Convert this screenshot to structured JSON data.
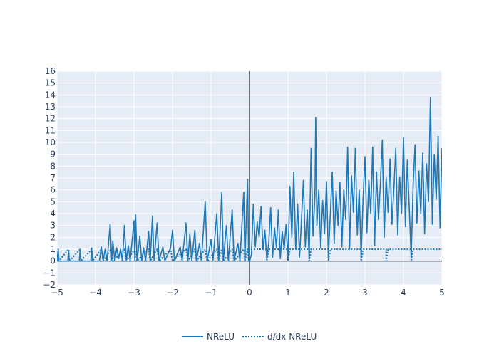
{
  "chart_data": {
    "type": "line",
    "title": "",
    "xlabel": "",
    "ylabel": "",
    "xlim": [
      -5,
      5
    ],
    "ylim": [
      -2,
      16
    ],
    "x_ticks": [
      -5,
      -4,
      -3,
      -2,
      -1,
      0,
      1,
      2,
      3,
      4,
      5
    ],
    "x_tick_labels": [
      "−5",
      "−4",
      "−3",
      "−2",
      "−1",
      "0",
      "1",
      "2",
      "3",
      "4",
      "5"
    ],
    "y_ticks": [
      -2,
      -1,
      0,
      1,
      2,
      3,
      4,
      5,
      6,
      7,
      8,
      9,
      10,
      11,
      12,
      13,
      14,
      15,
      16
    ],
    "y_tick_labels": [
      "−2",
      "−1",
      "0",
      "1",
      "2",
      "3",
      "4",
      "5",
      "6",
      "7",
      "8",
      "9",
      "10",
      "11",
      "12",
      "13",
      "14",
      "15",
      "16"
    ],
    "grid": true,
    "legend_position": "bottom-center",
    "colors": {
      "series": "#1f77b4",
      "plot_bg": "#e5ecf6",
      "grid": "#ffffff",
      "zero_line": "#000000",
      "x_zero_line": "#444444"
    },
    "series": [
      {
        "name": "NReLU",
        "style": "solid",
        "note": "noisy ReLU: mostly 0 for x<0 with sparse spikes; noisy values growing with x for x>0",
        "points": [
          [
            -5.0,
            0
          ],
          [
            -4.97,
            0.9
          ],
          [
            -4.95,
            0
          ],
          [
            -4.72,
            0
          ],
          [
            -4.7,
            0.8
          ],
          [
            -4.68,
            0
          ],
          [
            -4.42,
            0
          ],
          [
            -4.4,
            1.0
          ],
          [
            -4.38,
            0
          ],
          [
            -4.12,
            0
          ],
          [
            -4.1,
            1.1
          ],
          [
            -4.08,
            0
          ],
          [
            -3.9,
            0
          ],
          [
            -3.85,
            1.2
          ],
          [
            -3.8,
            0
          ],
          [
            -3.75,
            1.0
          ],
          [
            -3.7,
            0
          ],
          [
            -3.62,
            3.1
          ],
          [
            -3.58,
            0
          ],
          [
            -3.55,
            1.7
          ],
          [
            -3.5,
            0
          ],
          [
            -3.45,
            1.1
          ],
          [
            -3.4,
            0.2
          ],
          [
            -3.35,
            1.0
          ],
          [
            -3.3,
            0
          ],
          [
            -3.25,
            3.0
          ],
          [
            -3.2,
            0
          ],
          [
            -3.15,
            1.3
          ],
          [
            -3.1,
            0
          ],
          [
            -3.0,
            3.4
          ],
          [
            -2.98,
            0
          ],
          [
            -2.96,
            3.9
          ],
          [
            -2.92,
            0
          ],
          [
            -2.85,
            2.1
          ],
          [
            -2.8,
            0
          ],
          [
            -2.75,
            1.1
          ],
          [
            -2.7,
            0
          ],
          [
            -2.62,
            2.5
          ],
          [
            -2.58,
            0
          ],
          [
            -2.52,
            3.8
          ],
          [
            -2.48,
            0
          ],
          [
            -2.4,
            3.2
          ],
          [
            -2.35,
            0
          ],
          [
            -2.25,
            1.2
          ],
          [
            -2.2,
            0
          ],
          [
            -2.05,
            1.1
          ],
          [
            -2.0,
            2.6
          ],
          [
            -1.95,
            0
          ],
          [
            -1.8,
            1.2
          ],
          [
            -1.75,
            0
          ],
          [
            -1.65,
            3.2
          ],
          [
            -1.6,
            0
          ],
          [
            -1.55,
            2.3
          ],
          [
            -1.5,
            0
          ],
          [
            -1.42,
            2.6
          ],
          [
            -1.38,
            0
          ],
          [
            -1.3,
            1.5
          ],
          [
            -1.25,
            0
          ],
          [
            -1.15,
            5.0
          ],
          [
            -1.1,
            0
          ],
          [
            -1.0,
            1.8
          ],
          [
            -0.95,
            0
          ],
          [
            -0.85,
            4.0
          ],
          [
            -0.8,
            0
          ],
          [
            -0.72,
            5.8
          ],
          [
            -0.68,
            0
          ],
          [
            -0.6,
            3.0
          ],
          [
            -0.55,
            0
          ],
          [
            -0.45,
            4.3
          ],
          [
            -0.4,
            0
          ],
          [
            -0.3,
            1.5
          ],
          [
            -0.25,
            0
          ],
          [
            -0.15,
            5.8
          ],
          [
            -0.12,
            0
          ],
          [
            -0.05,
            6.9
          ],
          [
            -0.02,
            0
          ],
          [
            0.0,
            0
          ],
          [
            0.05,
            0.5
          ],
          [
            0.1,
            4.8
          ],
          [
            0.15,
            1.2
          ],
          [
            0.2,
            3.3
          ],
          [
            0.25,
            2.0
          ],
          [
            0.3,
            4.6
          ],
          [
            0.35,
            1.0
          ],
          [
            0.4,
            2.6
          ],
          [
            0.45,
            0.2
          ],
          [
            0.5,
            1.5
          ],
          [
            0.55,
            4.5
          ],
          [
            0.6,
            0.3
          ],
          [
            0.65,
            2.8
          ],
          [
            0.7,
            1.1
          ],
          [
            0.75,
            4.3
          ],
          [
            0.8,
            0.2
          ],
          [
            0.85,
            2.5
          ],
          [
            0.9,
            1.0
          ],
          [
            0.95,
            3.1
          ],
          [
            1.0,
            0.1
          ],
          [
            1.05,
            6.3
          ],
          [
            1.1,
            2.0
          ],
          [
            1.15,
            7.5
          ],
          [
            1.2,
            1.0
          ],
          [
            1.25,
            4.8
          ],
          [
            1.3,
            0.3
          ],
          [
            1.35,
            3.5
          ],
          [
            1.4,
            6.8
          ],
          [
            1.45,
            1.2
          ],
          [
            1.5,
            4.3
          ],
          [
            1.55,
            0.2
          ],
          [
            1.6,
            9.5
          ],
          [
            1.65,
            2.1
          ],
          [
            1.7,
            5.5
          ],
          [
            1.72,
            12.1
          ],
          [
            1.75,
            3.0
          ],
          [
            1.8,
            6.0
          ],
          [
            1.85,
            1.1
          ],
          [
            1.9,
            5.1
          ],
          [
            1.95,
            2.3
          ],
          [
            2.0,
            6.7
          ],
          [
            2.05,
            0.4
          ],
          [
            2.1,
            4.0
          ],
          [
            2.15,
            7.5
          ],
          [
            2.2,
            1.5
          ],
          [
            2.25,
            5.9
          ],
          [
            2.3,
            3.0
          ],
          [
            2.35,
            6.6
          ],
          [
            2.4,
            1.2
          ],
          [
            2.45,
            6.0
          ],
          [
            2.5,
            3.5
          ],
          [
            2.55,
            9.6
          ],
          [
            2.6,
            1.0
          ],
          [
            2.65,
            7.2
          ],
          [
            2.7,
            4.1
          ],
          [
            2.75,
            9.5
          ],
          [
            2.8,
            2.2
          ],
          [
            2.85,
            6.0
          ],
          [
            2.9,
            0.3
          ],
          [
            2.95,
            5.2
          ],
          [
            3.0,
            8.8
          ],
          [
            3.05,
            2.4
          ],
          [
            3.1,
            6.8
          ],
          [
            3.15,
            4.0
          ],
          [
            3.2,
            9.6
          ],
          [
            3.25,
            1.3
          ],
          [
            3.3,
            7.5
          ],
          [
            3.35,
            3.5
          ],
          [
            3.4,
            6.5
          ],
          [
            3.45,
            10.2
          ],
          [
            3.5,
            2.0
          ],
          [
            3.55,
            7.1
          ],
          [
            3.6,
            4.1
          ],
          [
            3.65,
            8.6
          ],
          [
            3.7,
            3.1
          ],
          [
            3.75,
            6.0
          ],
          [
            3.8,
            9.5
          ],
          [
            3.85,
            2.2
          ],
          [
            3.9,
            7.1
          ],
          [
            3.95,
            4.0
          ],
          [
            4.0,
            10.4
          ],
          [
            4.05,
            2.9
          ],
          [
            4.1,
            8.5
          ],
          [
            4.15,
            4.5
          ],
          [
            4.2,
            0.3
          ],
          [
            4.25,
            6.3
          ],
          [
            4.3,
            9.8
          ],
          [
            4.35,
            3.2
          ],
          [
            4.4,
            7.6
          ],
          [
            4.45,
            4.0
          ],
          [
            4.5,
            9.1
          ],
          [
            4.55,
            2.3
          ],
          [
            4.6,
            8.2
          ],
          [
            4.65,
            5.0
          ],
          [
            4.7,
            13.8
          ],
          [
            4.75,
            3.1
          ],
          [
            4.8,
            9.0
          ],
          [
            4.85,
            5.2
          ],
          [
            4.9,
            10.5
          ],
          [
            4.95,
            2.8
          ],
          [
            5.0,
            9.5
          ]
        ]
      },
      {
        "name": "d/dx NReLU",
        "style": "dotted",
        "note": "derivative of noisy ReLU: mostly 0 for x<0 with occasional 1s; mostly 1 for x>0 with occasional 0s",
        "points": [
          [
            -5.0,
            0
          ],
          [
            -4.97,
            1
          ],
          [
            -4.95,
            0
          ],
          [
            -4.7,
            1
          ],
          [
            -4.68,
            0
          ],
          [
            -4.4,
            1
          ],
          [
            -4.38,
            0
          ],
          [
            -4.1,
            1
          ],
          [
            -4.08,
            0
          ],
          [
            -3.85,
            1
          ],
          [
            -3.8,
            0
          ],
          [
            -3.6,
            1
          ],
          [
            -3.55,
            0
          ],
          [
            -3.25,
            1
          ],
          [
            -3.2,
            0
          ],
          [
            -2.98,
            1
          ],
          [
            -2.92,
            0
          ],
          [
            -2.62,
            1
          ],
          [
            -2.58,
            0
          ],
          [
            -2.4,
            1
          ],
          [
            -2.35,
            0
          ],
          [
            -2.05,
            1
          ],
          [
            -2.0,
            0
          ],
          [
            -1.65,
            1
          ],
          [
            -1.6,
            0
          ],
          [
            -1.42,
            1
          ],
          [
            -1.38,
            0
          ],
          [
            -1.15,
            1
          ],
          [
            -1.1,
            0
          ],
          [
            -0.85,
            1
          ],
          [
            -0.8,
            0
          ],
          [
            -0.72,
            1
          ],
          [
            -0.68,
            0
          ],
          [
            -0.45,
            1
          ],
          [
            -0.4,
            0
          ],
          [
            -0.15,
            1
          ],
          [
            -0.12,
            0
          ],
          [
            -0.05,
            1
          ],
          [
            -0.02,
            0
          ],
          [
            0.0,
            1
          ],
          [
            0.45,
            1
          ],
          [
            0.45,
            0
          ],
          [
            0.5,
            1
          ],
          [
            1.0,
            1
          ],
          [
            1.0,
            0
          ],
          [
            1.05,
            1
          ],
          [
            1.55,
            1
          ],
          [
            1.55,
            0
          ],
          [
            1.6,
            1
          ],
          [
            2.05,
            1
          ],
          [
            2.05,
            0
          ],
          [
            2.1,
            1
          ],
          [
            2.9,
            1
          ],
          [
            2.9,
            0
          ],
          [
            2.95,
            1
          ],
          [
            3.55,
            1
          ],
          [
            3.55,
            0
          ],
          [
            3.6,
            1
          ],
          [
            4.2,
            1
          ],
          [
            4.2,
            0
          ],
          [
            4.25,
            1
          ],
          [
            5.0,
            1
          ]
        ]
      }
    ]
  }
}
